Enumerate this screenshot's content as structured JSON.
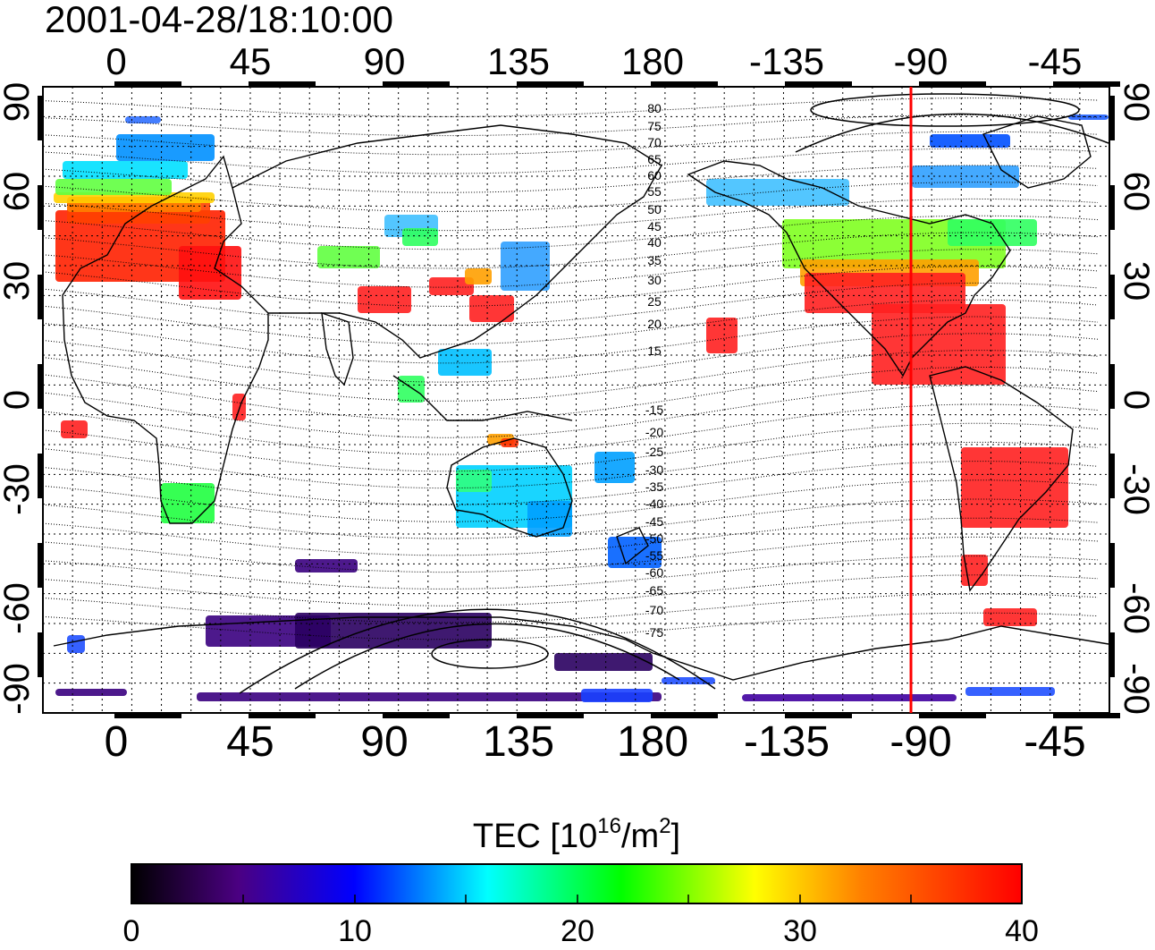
{
  "title": "2001-04-28/18:10:00",
  "map": {
    "lon_ticks_top": [
      "0",
      "45",
      "90",
      "135",
      "180",
      "-135",
      "-90",
      "-45"
    ],
    "lon_ticks_bottom": [
      "0",
      "45",
      "90",
      "135",
      "180",
      "-135",
      "-90",
      "-45"
    ],
    "lat_ticks_left": [
      "90",
      "60",
      "30",
      "0",
      "-30",
      "-60",
      "-90"
    ],
    "lat_ticks_right": [
      "90",
      "60",
      "30",
      "0",
      "-30",
      "-60",
      "-90"
    ],
    "contour_labels": [
      "80",
      "75",
      "70",
      "65",
      "60",
      "55",
      "50",
      "45",
      "40",
      "35",
      "30",
      "25",
      "20",
      "15",
      "-15",
      "-20",
      "-25",
      "-30",
      "-35",
      "-40",
      "-45",
      "-50",
      "-55",
      "-60",
      "-65",
      "-70",
      "-75"
    ],
    "terminator_longitude": "-90",
    "terminator_color": "#ff0000"
  },
  "colorbar": {
    "label_main": "TEC  [10",
    "label_exp1": "16",
    "label_unit": "/m",
    "label_exp2": "2",
    "label_close": "]",
    "ticks": [
      "0",
      "10",
      "20",
      "30",
      "40"
    ],
    "range": [
      0,
      40
    ],
    "colormap": [
      "#000000",
      "#4b0082",
      "#0000ff",
      "#00ffff",
      "#00ff00",
      "#ffff00",
      "#ff8000",
      "#ff0000"
    ]
  }
}
